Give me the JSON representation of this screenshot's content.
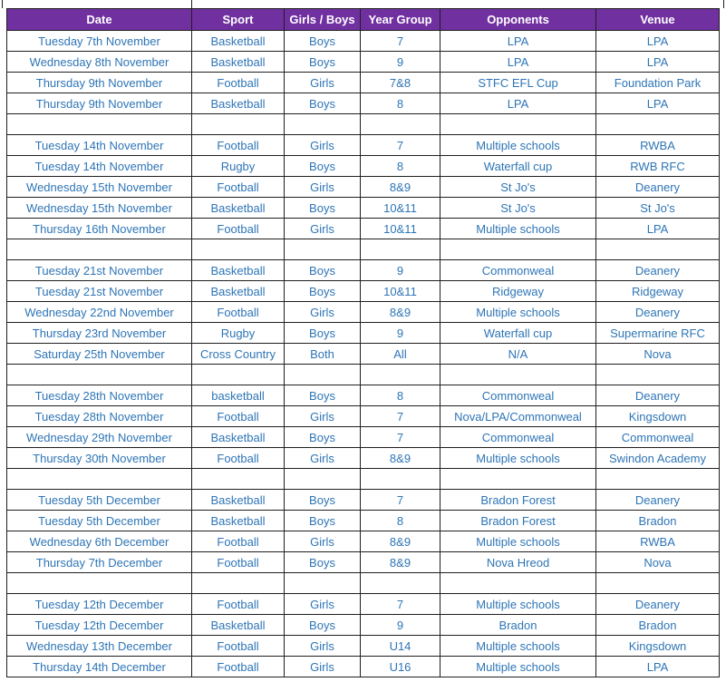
{
  "table": {
    "colors": {
      "header_bg": "#7030A0",
      "header_text": "#FFFFFF",
      "body_text": "#2E75B6",
      "border": "#1F1F1F"
    },
    "columns": [
      {
        "label": "Date"
      },
      {
        "label": "Sport"
      },
      {
        "label": "Girls / Boys"
      },
      {
        "label": "Year Group"
      },
      {
        "label": "Opponents"
      },
      {
        "label": "Venue"
      }
    ],
    "rows": [
      {
        "cells": [
          "Tuesday 7th November",
          "Basketball",
          "Boys",
          "7",
          "LPA",
          "LPA"
        ]
      },
      {
        "cells": [
          "Wednesday 8th November",
          "Basketball",
          "Boys",
          "9",
          "LPA",
          "LPA"
        ]
      },
      {
        "cells": [
          "Thursday 9th November",
          "Football",
          "Girls",
          "7&8",
          "STFC EFL Cup",
          "Foundation Park"
        ]
      },
      {
        "cells": [
          "Thursday 9th November",
          "Basketball",
          "Boys",
          "8",
          "LPA",
          "LPA"
        ]
      },
      {
        "cells": [
          "",
          "",
          "",
          "",
          "",
          ""
        ]
      },
      {
        "cells": [
          "Tuesday 14th November",
          "Football",
          "Girls",
          "7",
          "Multiple schools",
          "RWBA"
        ]
      },
      {
        "cells": [
          "Tuesday 14th November",
          "Rugby",
          "Boys",
          "8",
          "Waterfall cup",
          "RWB RFC"
        ]
      },
      {
        "cells": [
          "Wednesday 15th November",
          "Football",
          "Girls",
          "8&9",
          "St Jo's",
          "Deanery"
        ]
      },
      {
        "cells": [
          "Wednesday 15th November",
          "Basketball",
          "Boys",
          "10&11",
          "St Jo's",
          "St Jo's"
        ]
      },
      {
        "cells": [
          "Thursday 16th November",
          "Football",
          "Girls",
          "10&11",
          "Multiple schools",
          "LPA"
        ]
      },
      {
        "cells": [
          "",
          "",
          "",
          "",
          "",
          ""
        ]
      },
      {
        "cells": [
          "Tuesday 21st November",
          "Basketball",
          "Boys",
          "9",
          "Commonweal",
          "Deanery"
        ]
      },
      {
        "cells": [
          "Tuesday 21st November",
          "Basketball",
          "Boys",
          "10&11",
          "Ridgeway",
          "Ridgeway"
        ]
      },
      {
        "cells": [
          "Wednesday 22nd November",
          "Football",
          "Girls",
          "8&9",
          "Multiple schools",
          "Deanery"
        ]
      },
      {
        "cells": [
          "Thursday 23rd November",
          "Rugby",
          "Boys",
          "9",
          "Waterfall cup",
          "Supermarine RFC"
        ]
      },
      {
        "cells": [
          "Saturday 25th November",
          "Cross Country",
          "Both",
          "All",
          "N/A",
          "Nova"
        ]
      },
      {
        "cells": [
          "",
          "",
          "",
          "",
          "",
          ""
        ]
      },
      {
        "cells": [
          "Tuesday 28th November",
          "basketball",
          "Boys",
          "8",
          "Commonweal",
          "Deanery"
        ]
      },
      {
        "cells": [
          "Tuesday 28th November",
          "Football",
          "Girls",
          "7",
          "Nova/LPA/Commonweal",
          "Kingsdown"
        ]
      },
      {
        "cells": [
          "Wednesday 29th November",
          "Basketball",
          "Boys",
          "7",
          "Commonweal",
          "Commonweal"
        ]
      },
      {
        "cells": [
          "Thursday 30th November",
          "Football",
          "Girls",
          "8&9",
          "Multiple schools",
          "Swindon Academy"
        ]
      },
      {
        "cells": [
          "",
          "",
          "",
          "",
          "",
          ""
        ]
      },
      {
        "cells": [
          "Tuesday 5th December",
          "Basketball",
          "Boys",
          "7",
          "Bradon Forest",
          "Deanery"
        ]
      },
      {
        "cells": [
          "Tuesday 5th December",
          "Basketball",
          "Boys",
          "8",
          "Bradon Forest",
          "Bradon"
        ]
      },
      {
        "cells": [
          "Wednesday 6th December",
          "Football",
          "Girls",
          "8&9",
          "Multiple schools",
          "RWBA"
        ]
      },
      {
        "cells": [
          "Thursday 7th December",
          "Football",
          "Boys",
          "8&9",
          "Nova Hreod",
          "Nova"
        ]
      },
      {
        "cells": [
          "",
          "",
          "",
          "",
          "",
          ""
        ]
      },
      {
        "cells": [
          "Tuesday 12th December",
          "Football",
          "Girls",
          "7",
          "Multiple schools",
          "Deanery"
        ]
      },
      {
        "cells": [
          "Tuesday 12th December",
          "Basketball",
          "Boys",
          "9",
          "Bradon",
          "Bradon"
        ]
      },
      {
        "cells": [
          "Wednesday 13th December",
          "Football",
          "Girls",
          "U14",
          "Multiple schools",
          "Kingsdown"
        ]
      },
      {
        "cells": [
          "Thursday 14th December",
          "Football",
          "Girls",
          "U16",
          "Multiple schools",
          "LPA"
        ]
      }
    ]
  }
}
